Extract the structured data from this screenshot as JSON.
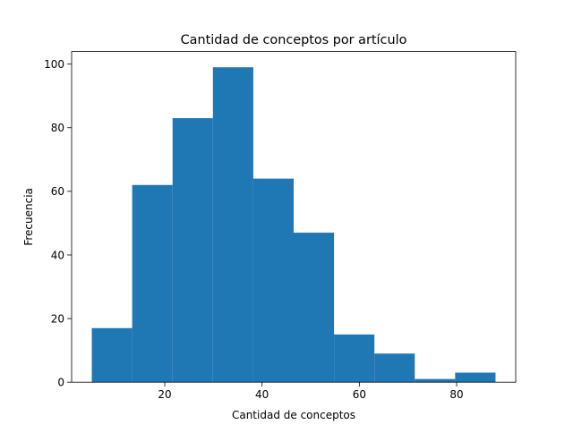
{
  "chart_data": {
    "type": "bar",
    "title": "Cantidad de conceptos por artículo",
    "xlabel": "Cantidad de conceptos",
    "ylabel": "Frecuencia",
    "bin_edges": [
      5,
      13.3,
      21.6,
      29.9,
      38.2,
      46.5,
      54.8,
      63.1,
      71.4,
      79.7,
      88
    ],
    "values": [
      17,
      62,
      83,
      99,
      64,
      47,
      15,
      9,
      1,
      3
    ],
    "xlim": [
      0.85,
      92.15
    ],
    "ylim": [
      0,
      103.95
    ],
    "xticks": [
      20,
      40,
      60,
      80
    ],
    "xtick_labels": [
      "20",
      "40",
      "60",
      "80"
    ],
    "yticks": [
      0,
      20,
      40,
      60,
      80,
      100
    ],
    "ytick_labels": [
      "0",
      "20",
      "40",
      "60",
      "80",
      "100"
    ],
    "grid": false,
    "bar_color": "#1f77b4"
  }
}
